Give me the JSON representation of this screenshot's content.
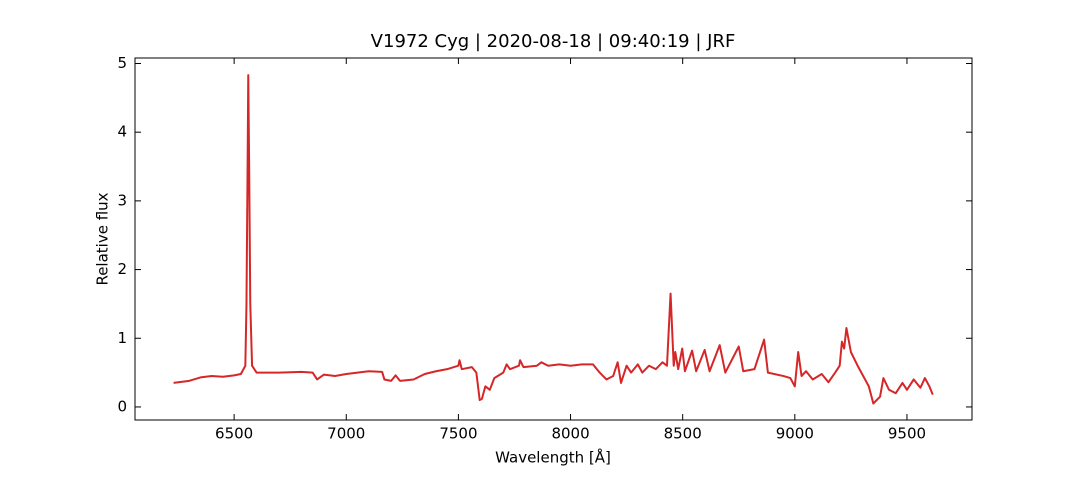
{
  "chart_data": {
    "type": "line",
    "title": "V1972 Cyg | 2020-08-18 | 09:40:19 | JRF",
    "x_label": "Wavelength [Å]",
    "y_label": "Relative flux",
    "color": "#d62728",
    "xlim": [
      6058,
      9790
    ],
    "ylim": [
      -0.19,
      5.08
    ],
    "xticks": [
      6500,
      7000,
      7500,
      8000,
      8500,
      9000,
      9500
    ],
    "yticks": [
      0,
      1,
      2,
      3,
      4,
      5
    ],
    "x": [
      6230,
      6300,
      6350,
      6400,
      6450,
      6500,
      6530,
      6550,
      6555,
      6560,
      6563,
      6567,
      6572,
      6580,
      6600,
      6700,
      6800,
      6850,
      6870,
      6900,
      6950,
      7000,
      7100,
      7160,
      7170,
      7200,
      7220,
      7240,
      7300,
      7350,
      7400,
      7450,
      7500,
      7505,
      7515,
      7560,
      7580,
      7595,
      7605,
      7620,
      7640,
      7660,
      7700,
      7715,
      7730,
      7770,
      7775,
      7790,
      7850,
      7870,
      7900,
      7950,
      8000,
      8050,
      8100,
      8130,
      8160,
      8190,
      8210,
      8225,
      8250,
      8270,
      8300,
      8320,
      8350,
      8380,
      8410,
      8430,
      8446,
      8460,
      8467,
      8480,
      8498,
      8510,
      8542,
      8560,
      8598,
      8620,
      8665,
      8690,
      8750,
      8770,
      8820,
      8863,
      8880,
      8950,
      8980,
      9000,
      9015,
      9030,
      9050,
      9080,
      9120,
      9150,
      9180,
      9200,
      9210,
      9220,
      9230,
      9250,
      9280,
      9330,
      9350,
      9380,
      9395,
      9420,
      9450,
      9480,
      9500,
      9530,
      9560,
      9580,
      9600,
      9615
    ],
    "values": [
      0.35,
      0.38,
      0.43,
      0.45,
      0.44,
      0.46,
      0.48,
      0.6,
      1.5,
      3.5,
      4.83,
      3.5,
      1.5,
      0.6,
      0.5,
      0.5,
      0.51,
      0.5,
      0.4,
      0.47,
      0.45,
      0.48,
      0.52,
      0.51,
      0.4,
      0.38,
      0.46,
      0.38,
      0.4,
      0.48,
      0.52,
      0.55,
      0.6,
      0.68,
      0.55,
      0.58,
      0.5,
      0.1,
      0.12,
      0.3,
      0.25,
      0.42,
      0.5,
      0.62,
      0.55,
      0.6,
      0.68,
      0.58,
      0.6,
      0.65,
      0.6,
      0.62,
      0.6,
      0.62,
      0.62,
      0.5,
      0.4,
      0.45,
      0.65,
      0.35,
      0.6,
      0.5,
      0.62,
      0.5,
      0.6,
      0.55,
      0.65,
      0.6,
      1.65,
      0.6,
      0.8,
      0.55,
      0.85,
      0.52,
      0.82,
      0.52,
      0.83,
      0.52,
      0.9,
      0.5,
      0.88,
      0.52,
      0.55,
      0.98,
      0.5,
      0.45,
      0.42,
      0.3,
      0.8,
      0.45,
      0.52,
      0.4,
      0.48,
      0.36,
      0.5,
      0.6,
      0.95,
      0.85,
      1.15,
      0.8,
      0.6,
      0.3,
      0.05,
      0.15,
      0.42,
      0.25,
      0.2,
      0.35,
      0.25,
      0.4,
      0.28,
      0.42,
      0.3,
      0.18
    ]
  }
}
